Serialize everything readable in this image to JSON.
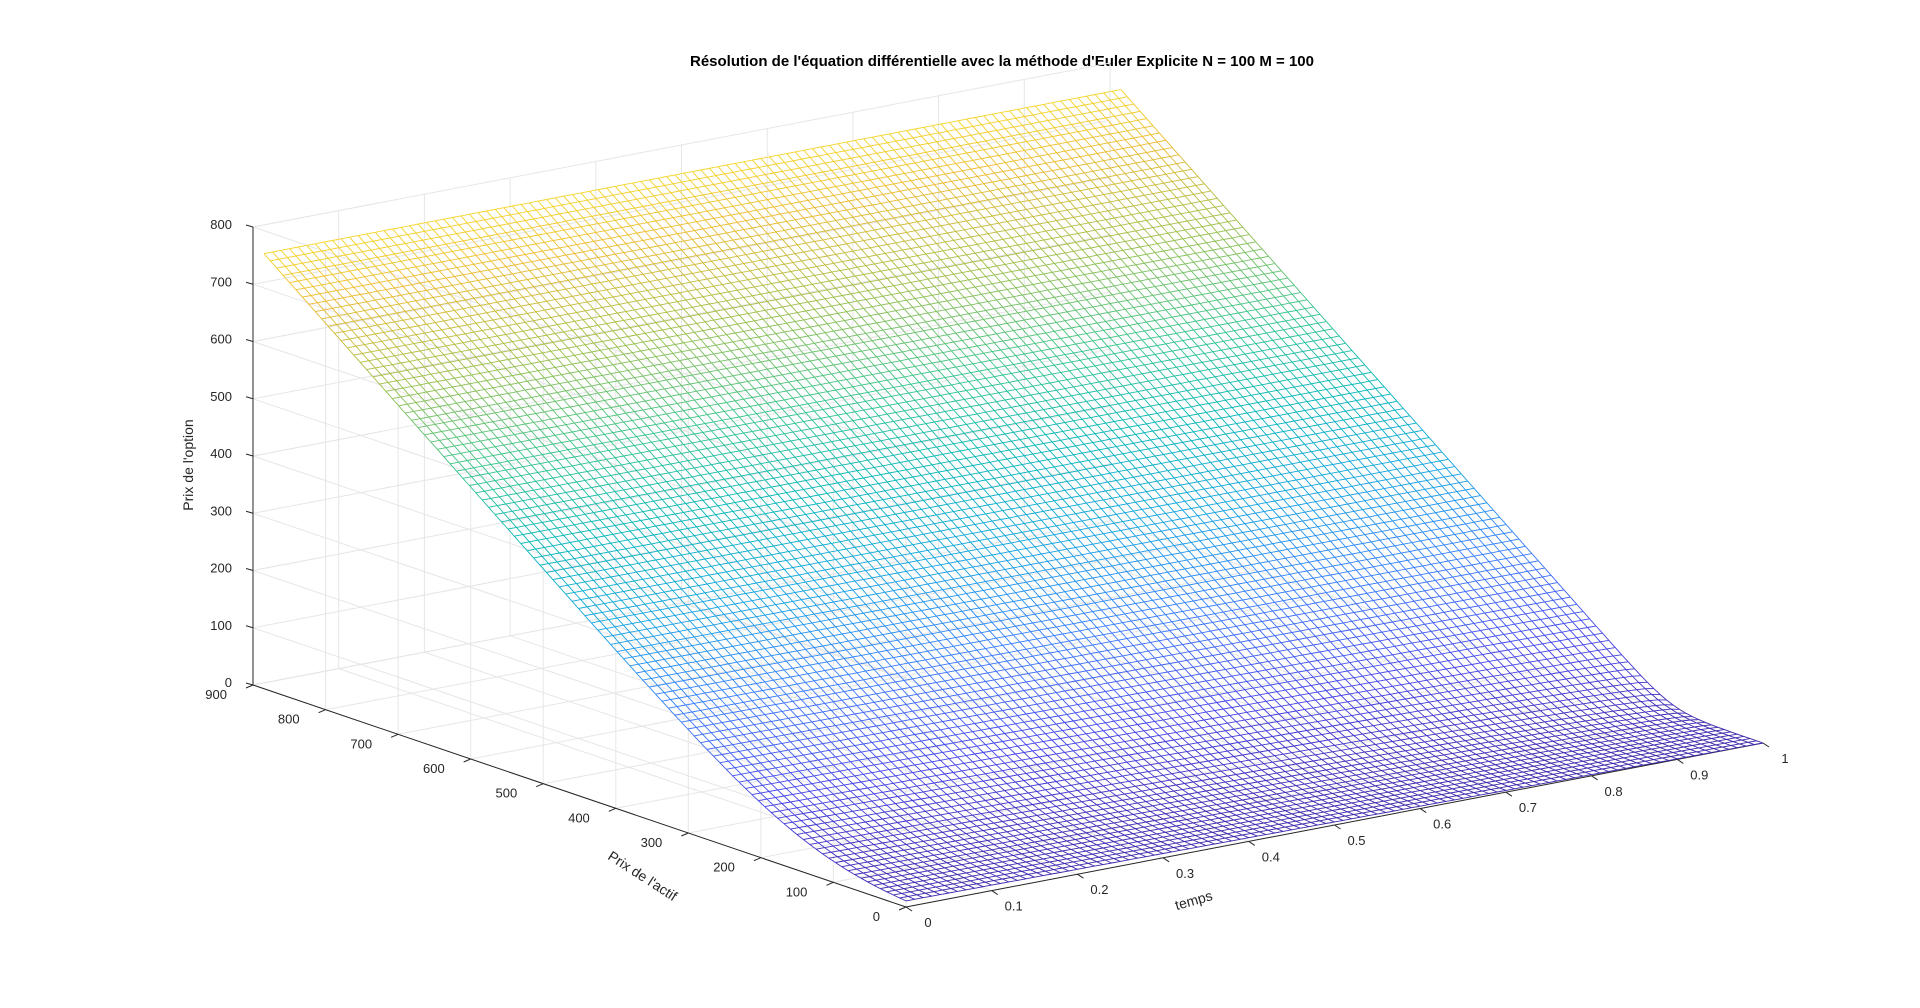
{
  "chart_data": {
    "type": "surface",
    "title": "Résolution de l'équation différentielle avec la méthode d'Euler Explicite N = 100 M = 100",
    "xlabel": "temps",
    "ylabel": "Prix de l'actif",
    "zlabel": "Prix de l'option",
    "xlim": [
      0,
      1
    ],
    "ylim": [
      0,
      900
    ],
    "zlim": [
      0,
      800
    ],
    "xticks": [
      0,
      0.1,
      0.2,
      0.3,
      0.4,
      0.5,
      0.6,
      0.7,
      0.8,
      0.9,
      1
    ],
    "yticks": [
      0,
      100,
      200,
      300,
      400,
      500,
      600,
      700,
      800,
      900
    ],
    "zticks": [
      0,
      100,
      200,
      300,
      400,
      500,
      600,
      700,
      800
    ],
    "xtick_labels": [
      "0",
      "0.1",
      "0.2",
      "0.3",
      "0.4",
      "0.5",
      "0.6",
      "0.7",
      "0.8",
      "0.9",
      "1"
    ],
    "ytick_labels": [
      "0",
      "100",
      "200",
      "300",
      "400",
      "500",
      "600",
      "700",
      "800",
      "900"
    ],
    "ztick_labels": [
      "0",
      "100",
      "200",
      "300",
      "400",
      "500",
      "600",
      "700",
      "800"
    ],
    "grid": true,
    "colormap": "parula",
    "N": 100,
    "M": 100,
    "surface": {
      "t_range": [
        0,
        1
      ],
      "S_range": [
        0,
        885
      ],
      "strike": 125,
      "value_at_S_max": 760,
      "description": "option price rises linearly with asset price above the strike, near zero below"
    }
  }
}
